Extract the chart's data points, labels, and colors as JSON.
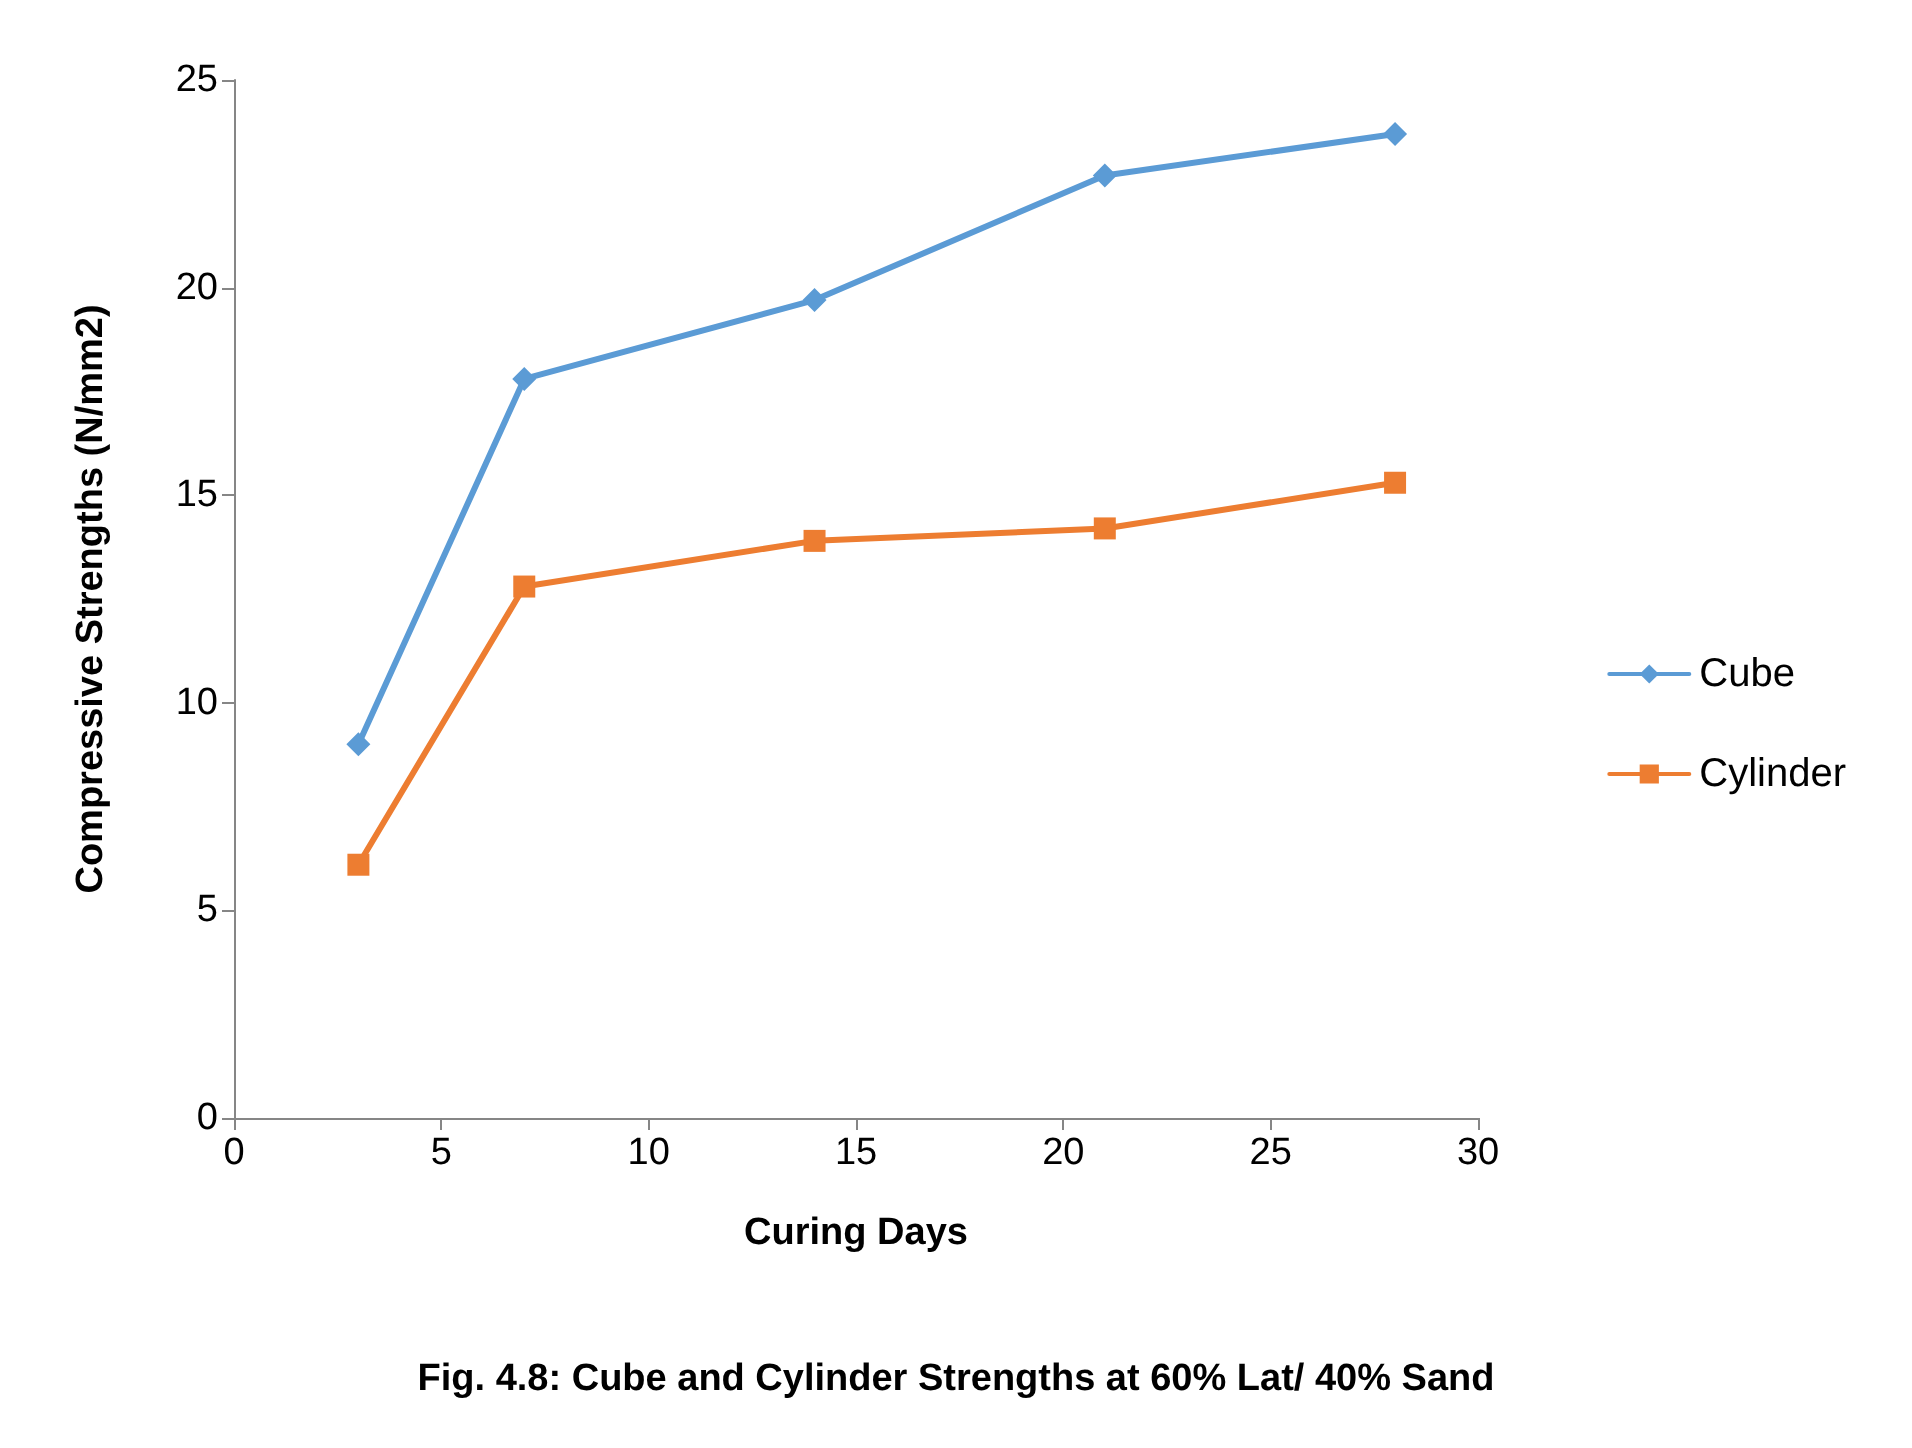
{
  "chart_data": {
    "type": "line",
    "xlabel": "Curing Days",
    "ylabel": "Compressive Strengths (N/mm2)",
    "annotations": [
      "Fig. 4.8: Cube and Cylinder Strengths at 60% Lat/ 40% Sand"
    ],
    "x": [
      3,
      7,
      14,
      21,
      28
    ],
    "series": [
      {
        "name": "Cube",
        "color": "#5b9bd5",
        "marker": "diamond",
        "values": [
          9.0,
          17.8,
          19.7,
          22.7,
          23.7
        ]
      },
      {
        "name": "Cylinder",
        "color": "#ed7d31",
        "marker": "square",
        "values": [
          6.1,
          12.8,
          13.9,
          14.2,
          15.3
        ]
      }
    ],
    "xlim": [
      0,
      30
    ],
    "xticks": [
      0,
      5,
      10,
      15,
      20,
      25,
      30
    ],
    "ylim": [
      0,
      25
    ],
    "yticks": [
      0,
      5,
      10,
      15,
      20,
      25
    ],
    "grid": false,
    "legend": "right",
    "line_style": "solid"
  }
}
